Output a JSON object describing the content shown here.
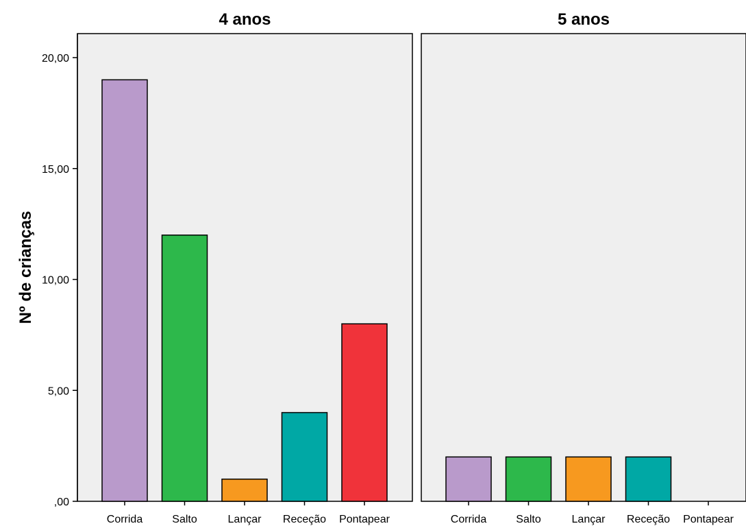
{
  "chart_data": {
    "type": "bar",
    "ylabel": "Nº de crianças",
    "ylim": [
      0,
      21
    ],
    "yticks": [
      {
        "value": 0,
        "label": ",00"
      },
      {
        "value": 5,
        "label": "5,00"
      },
      {
        "value": 10,
        "label": "10,00"
      },
      {
        "value": 15,
        "label": "15,00"
      },
      {
        "value": 20,
        "label": "20,00"
      }
    ],
    "categories": [
      "Corrida",
      "Salto",
      "Lançar",
      "Receção",
      "Pontapear"
    ],
    "colors": [
      "#b99acb",
      "#2db84b",
      "#f7991f",
      "#00a8a5",
      "#f0333a"
    ],
    "panel_background": "#efefef",
    "grid": false,
    "legend": "none",
    "panels": [
      {
        "title": "4 anos",
        "values": [
          19,
          12,
          1,
          4,
          8
        ]
      },
      {
        "title": "5 anos",
        "values": [
          2,
          2,
          2,
          2,
          0
        ]
      }
    ]
  }
}
